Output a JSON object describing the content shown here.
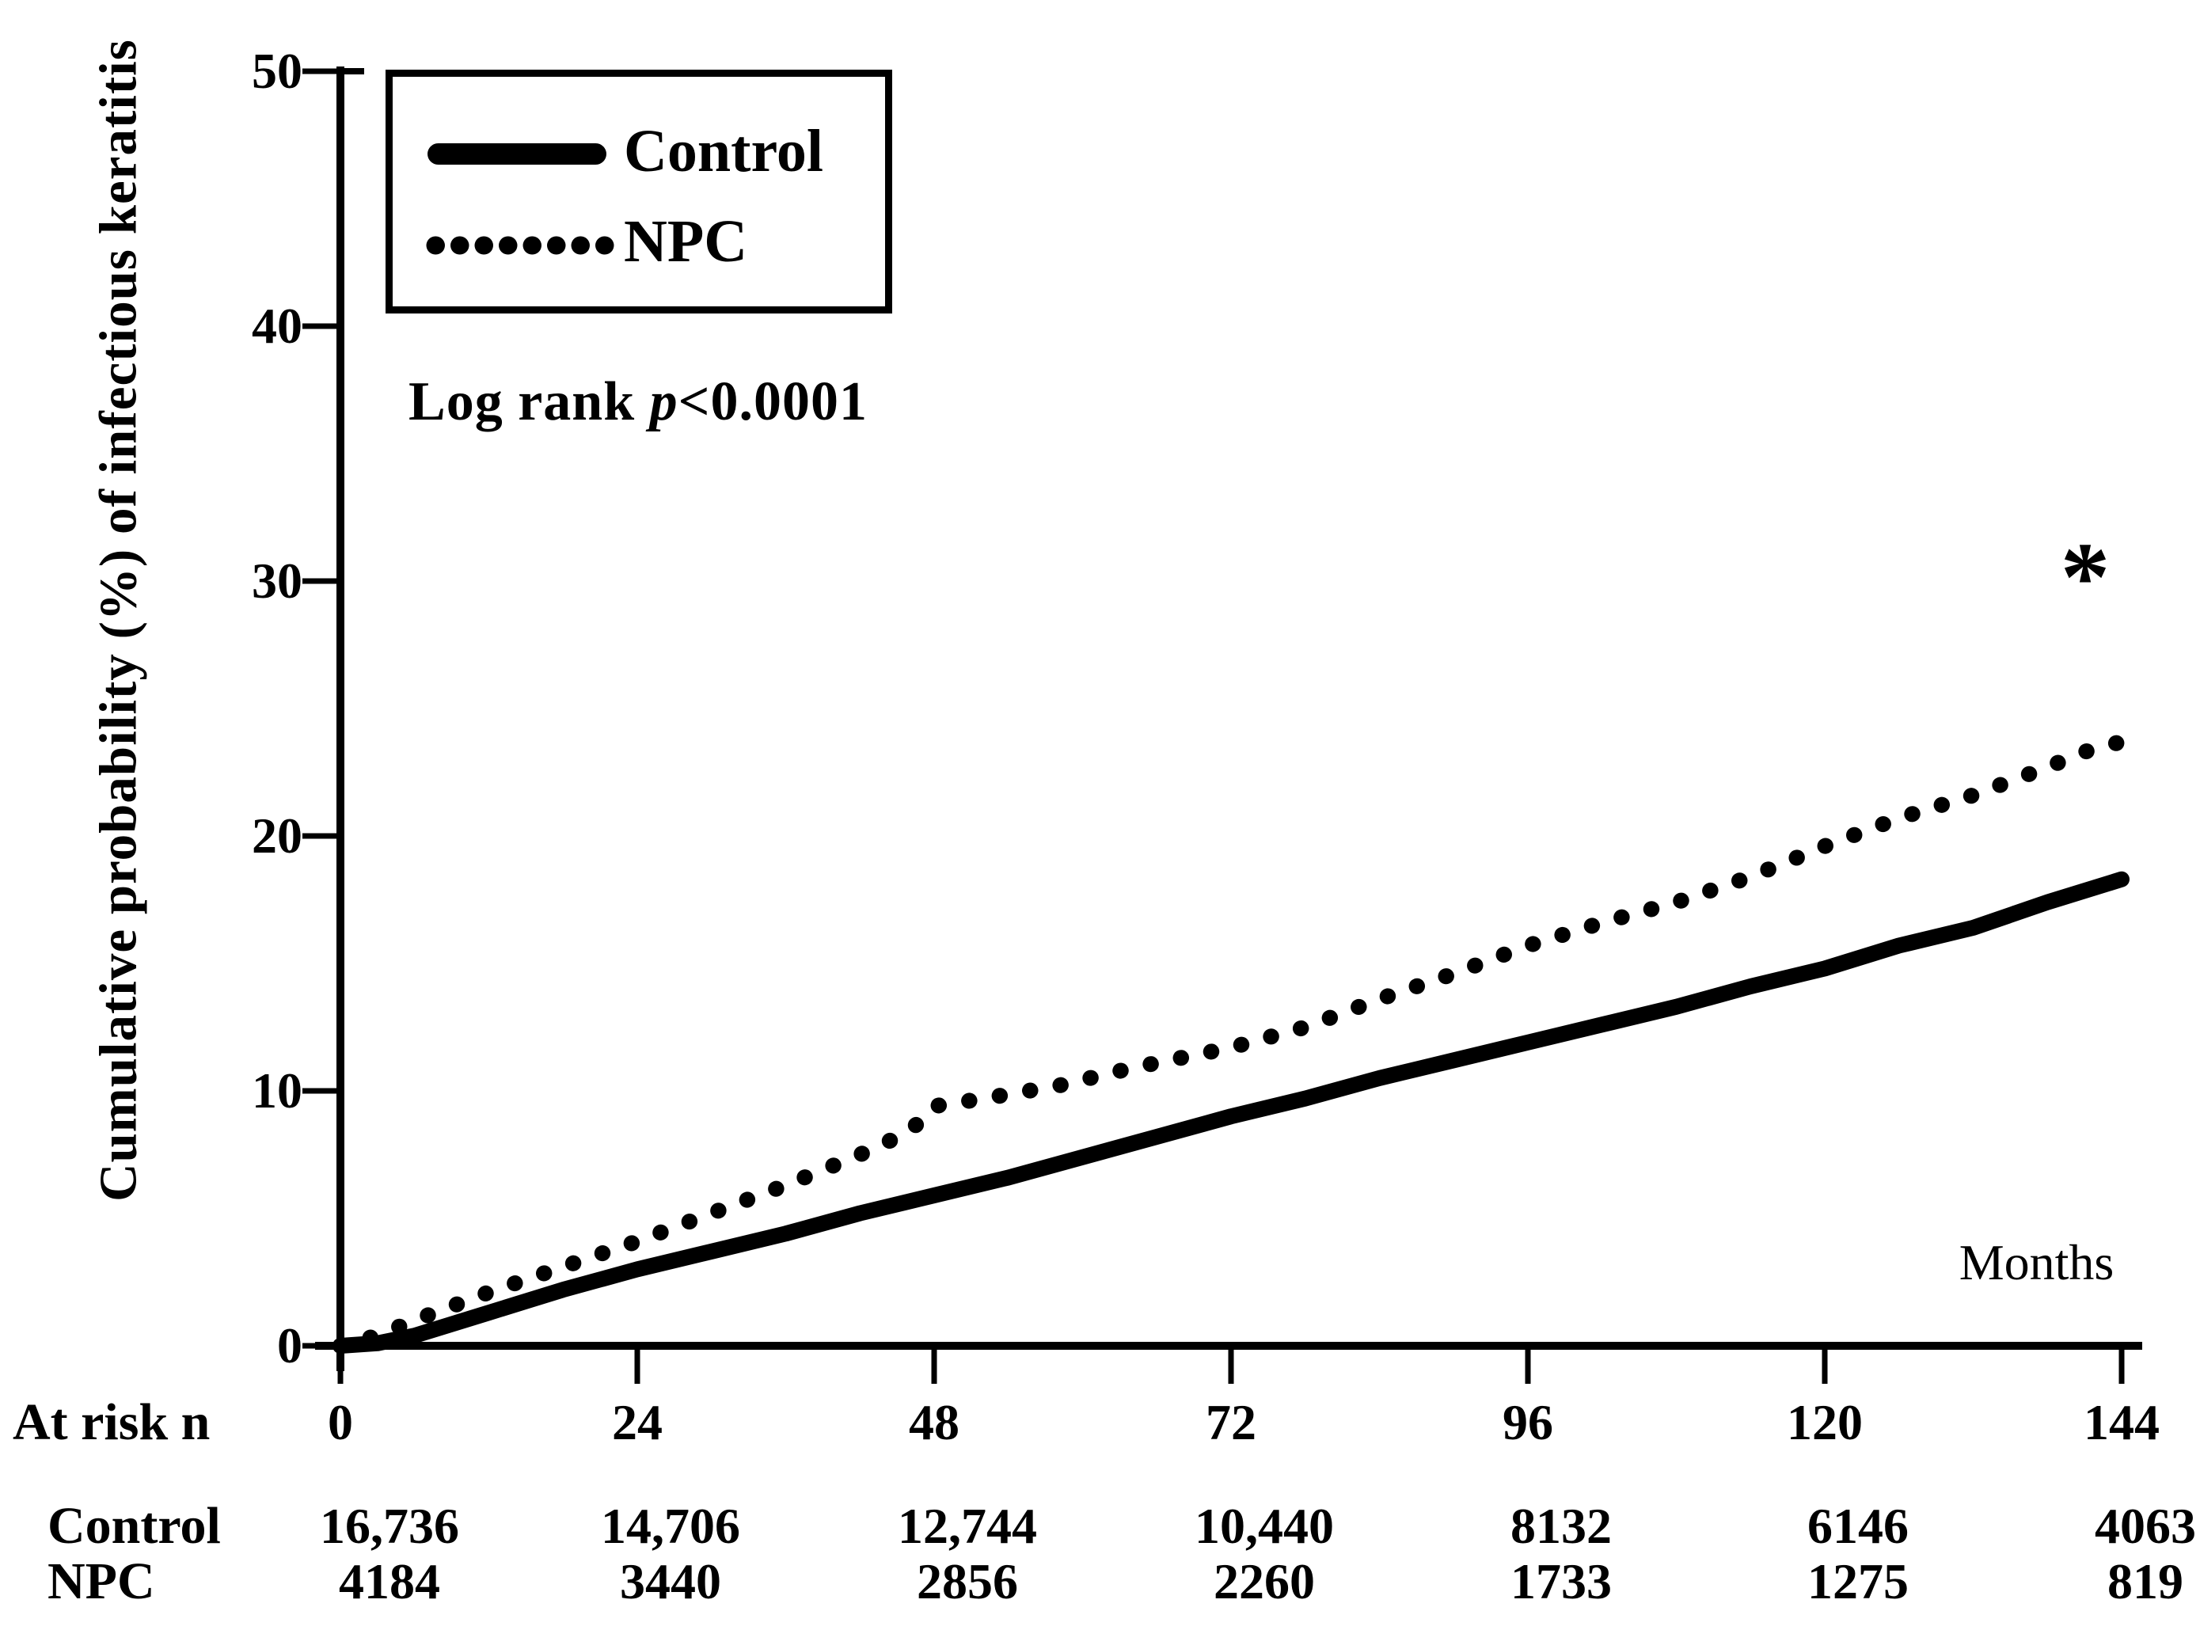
{
  "figure": {
    "y_axis_label": "Cumulative probability (%) of infectious keratitis",
    "x_axis_label": "Months",
    "annotation_logrank": {
      "prefix": "Log rank ",
      "p_symbol": "p",
      "comparison": "<0.0001"
    },
    "significance_marker": "*",
    "legend": {
      "entries": [
        {
          "label": "Control",
          "line_style": "solid"
        },
        {
          "label": "NPC",
          "line_style": "dotted"
        }
      ]
    },
    "colors": {
      "foreground": "#000000",
      "background": "#ffffff"
    }
  },
  "chart_data": {
    "type": "line",
    "title": "",
    "xlabel": "Months",
    "ylabel": "Cumulative probability (%) of infectious keratitis",
    "xlim": [
      0,
      144
    ],
    "ylim": [
      0,
      50
    ],
    "x_ticks": [
      0,
      24,
      48,
      72,
      96,
      120,
      144
    ],
    "y_ticks": [
      0,
      10,
      20,
      30,
      40,
      50
    ],
    "grid": false,
    "legend_position": "upper-left",
    "series": [
      {
        "name": "Control",
        "line_style": "solid",
        "x": [
          0,
          3,
          6,
          12,
          18,
          24,
          30,
          36,
          42,
          48,
          54,
          60,
          66,
          72,
          78,
          84,
          90,
          96,
          102,
          108,
          114,
          120,
          126,
          132,
          138,
          144
        ],
        "y": [
          0,
          0.1,
          0.4,
          1.3,
          2.2,
          3.0,
          3.7,
          4.4,
          5.2,
          5.9,
          6.6,
          7.4,
          8.2,
          9.0,
          9.7,
          10.5,
          11.2,
          11.9,
          12.6,
          13.3,
          14.1,
          14.8,
          15.7,
          16.4,
          17.4,
          18.3
        ]
      },
      {
        "name": "NPC",
        "line_style": "dotted",
        "x": [
          0,
          3,
          6,
          12,
          18,
          24,
          30,
          36,
          42,
          46,
          48,
          52,
          58,
          64,
          72,
          78,
          84,
          90,
          96,
          102,
          108,
          114,
          120,
          126,
          132,
          138,
          141,
          144
        ],
        "y": [
          0,
          0.4,
          1.0,
          2.1,
          3.1,
          4.1,
          5.2,
          6.3,
          7.5,
          8.4,
          9.4,
          9.7,
          10.2,
          10.9,
          11.7,
          12.5,
          13.6,
          14.6,
          15.7,
          16.6,
          17.4,
          18.4,
          19.6,
          20.7,
          21.6,
          22.7,
          23.3,
          23.7
        ]
      }
    ],
    "annotations": [
      {
        "text": "Log rank p<0.0001",
        "x": 5.5,
        "y": 36.5
      },
      {
        "text": "*",
        "x": 141,
        "y": 30
      }
    ]
  },
  "at_risk_table": {
    "header_label": "At risk n",
    "time_points": [
      "0",
      "24",
      "48",
      "72",
      "96",
      "120",
      "144"
    ],
    "rows": [
      {
        "label": "Control",
        "values": [
          "16,736",
          "14,706",
          "12,744",
          "10,440",
          "8132",
          "6146",
          "4063"
        ]
      },
      {
        "label": "NPC",
        "values": [
          "4184",
          "3440",
          "2856",
          "2260",
          "1733",
          "1275",
          "819"
        ]
      }
    ]
  }
}
